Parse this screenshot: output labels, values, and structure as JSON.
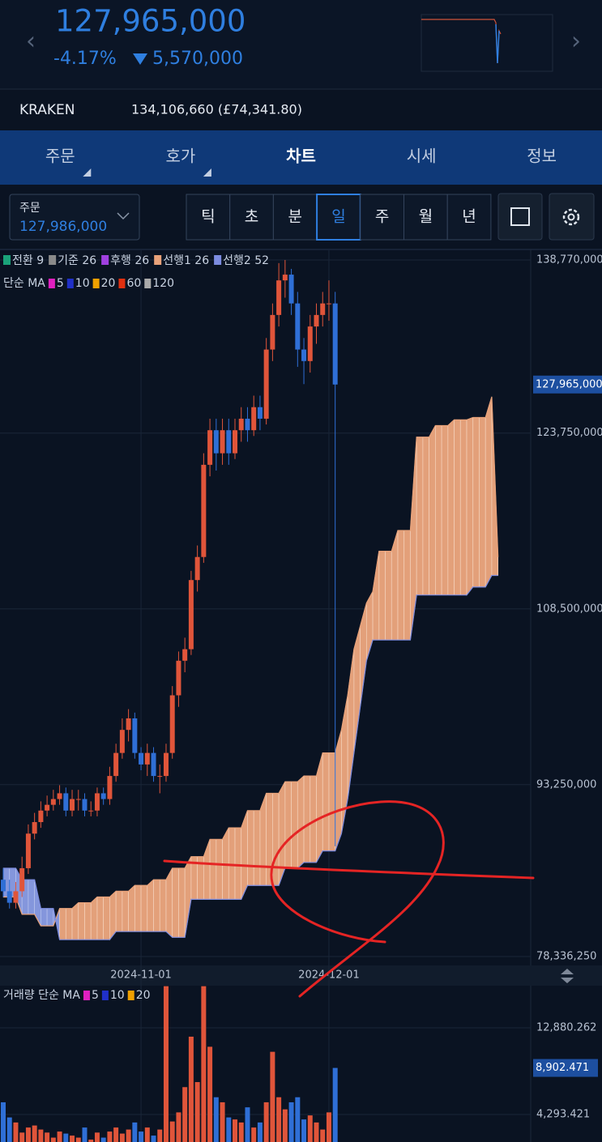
{
  "header": {
    "price": "127,965,000",
    "change_pct": "-4.17%",
    "change": "5,570,000"
  },
  "exchange": {
    "name": "KRAKEN",
    "price": "134,106,660 (£74,341.80)"
  },
  "tabs": [
    "주문",
    "호가",
    "차트",
    "시세",
    "정보"
  ],
  "selected_tab": "차트",
  "order_box": {
    "label": "주문",
    "price": "127,986,000"
  },
  "periods": [
    "틱",
    "초",
    "분",
    "일",
    "주",
    "월",
    "년"
  ],
  "selected_period": "일",
  "chart_data": {
    "type": "candlestick",
    "ichimoku_legend": [
      {
        "name": "전환 9",
        "color": "#1aa37a"
      },
      {
        "name": "기준 26",
        "color": "#8a8a8a"
      },
      {
        "name": "후행 26",
        "color": "#a040e0"
      },
      {
        "name": "선행1 26",
        "color": "#e8a27a"
      },
      {
        "name": "선행2 52",
        "color": "#7c8ce0"
      }
    ],
    "ma_legend": {
      "title": "단순 MA",
      "items": [
        {
          "name": "5",
          "color": "#e020c0"
        },
        {
          "name": "10",
          "color": "#2030c8"
        },
        {
          "name": "20",
          "color": "#f0a000"
        },
        {
          "name": "60",
          "color": "#e03010"
        },
        {
          "name": "120",
          "color": "#aaaaaa"
        }
      ]
    },
    "up_color": "#e0553a",
    "down_color": "#2f6fd6",
    "categories": [
      null,
      null,
      null,
      null,
      null,
      null,
      null,
      null,
      null,
      null,
      null,
      null,
      null,
      null,
      null,
      null,
      null,
      null,
      null,
      null,
      null,
      null,
      "2024-11-01",
      null,
      null,
      null,
      null,
      null,
      null,
      null,
      null,
      null,
      null,
      null,
      null,
      null,
      null,
      null,
      null,
      null,
      null,
      null,
      null,
      null,
      null,
      null,
      null,
      null,
      null,
      null,
      null,
      null,
      "2024-12-01",
      null,
      null,
      null,
      null,
      null,
      null,
      null,
      null,
      null,
      null,
      null,
      null,
      null,
      null,
      null,
      null,
      null,
      null,
      null,
      null,
      null,
      null,
      null,
      null,
      null,
      null,
      null
    ],
    "candles": [
      [
        85000000,
        86000000,
        83500000,
        84000000
      ],
      [
        84000000,
        85000000,
        82500000,
        83000000
      ],
      [
        83000000,
        84800000,
        82500000,
        84000000
      ],
      [
        84000000,
        87000000,
        83500000,
        86000000
      ],
      [
        86000000,
        89800000,
        85500000,
        89000000
      ],
      [
        89000000,
        90800000,
        88500000,
        90000000
      ],
      [
        90000000,
        91800000,
        89500000,
        91000000
      ],
      [
        91000000,
        92300000,
        90500000,
        91500000
      ],
      [
        91500000,
        92800000,
        91000000,
        92000000
      ],
      [
        92000000,
        93200000,
        91500000,
        92500000
      ],
      [
        92500000,
        93000000,
        90500000,
        91000000
      ],
      [
        91000000,
        92800000,
        90500000,
        92000000
      ],
      [
        92000000,
        92800000,
        91000000,
        92000000
      ],
      [
        92000000,
        92500000,
        90500000,
        91000000
      ],
      [
        91000000,
        91800000,
        90500000,
        91000000
      ],
      [
        91000000,
        93000000,
        90500000,
        92500000
      ],
      [
        92500000,
        93000000,
        91500000,
        92000000
      ],
      [
        92000000,
        94800000,
        91500000,
        94000000
      ],
      [
        94000000,
        96800000,
        93500000,
        96000000
      ],
      [
        96000000,
        99000000,
        95500000,
        98000000
      ],
      [
        98000000,
        99800000,
        97000000,
        99000000
      ],
      [
        99000000,
        99500000,
        95500000,
        96000000
      ],
      [
        96000000,
        96500000,
        94500000,
        95000000
      ],
      [
        95000000,
        96800000,
        94000000,
        96000000
      ],
      [
        96000000,
        96500000,
        93500000,
        94000000
      ],
      [
        94000000,
        95000000,
        92500000,
        94000000
      ],
      [
        94000000,
        96800000,
        93500000,
        96000000
      ],
      [
        96000000,
        101800000,
        95500000,
        101000000
      ],
      [
        101000000,
        104800000,
        100000000,
        104000000
      ],
      [
        104000000,
        106000000,
        103000000,
        105000000
      ],
      [
        105000000,
        111800000,
        104500000,
        111000000
      ],
      [
        111000000,
        114000000,
        110000000,
        113000000
      ],
      [
        113000000,
        122000000,
        112500000,
        121000000
      ],
      [
        121000000,
        125000000,
        120000000,
        124000000
      ],
      [
        124000000,
        125000000,
        120500000,
        122000000
      ],
      [
        122000000,
        125000000,
        121000000,
        124000000
      ],
      [
        124000000,
        125000000,
        121000000,
        122000000
      ],
      [
        122000000,
        125000000,
        121500000,
        124000000
      ],
      [
        124000000,
        126000000,
        123000000,
        125000000
      ],
      [
        125000000,
        126000000,
        123000000,
        124000000
      ],
      [
        124000000,
        127000000,
        123500000,
        126000000
      ],
      [
        126000000,
        127000000,
        124000000,
        125000000
      ],
      [
        125000000,
        132000000,
        124500000,
        131000000
      ],
      [
        131000000,
        135000000,
        130000000,
        134000000
      ],
      [
        134000000,
        138500000,
        133000000,
        137000000
      ],
      [
        137000000,
        138770000,
        135500000,
        137500000
      ],
      [
        137500000,
        138000000,
        134000000,
        135000000
      ],
      [
        135000000,
        136000000,
        129500000,
        131000000
      ],
      [
        131000000,
        132000000,
        128000000,
        130000000
      ],
      [
        130000000,
        134000000,
        129000000,
        133000000
      ],
      [
        133000000,
        135000000,
        131500000,
        134000000
      ],
      [
        134000000,
        136000000,
        133000000,
        135000000
      ],
      [
        135000000,
        137000000,
        133500000,
        135000000
      ],
      [
        135000000,
        136000000,
        87900000,
        127965000
      ],
      null,
      null,
      null,
      null,
      null,
      null,
      null,
      null,
      null,
      null,
      null,
      null,
      null,
      null,
      null,
      null,
      null,
      null,
      null,
      null,
      null,
      null,
      null,
      null,
      null,
      null
    ],
    "span_a": [
      83500000,
      83500000,
      83500000,
      82000000,
      82000000,
      82000000,
      81000000,
      81000000,
      81000000,
      82500000,
      82500000,
      82500000,
      83000000,
      83000000,
      83000000,
      83500000,
      83500000,
      83500000,
      84000000,
      84000000,
      84000000,
      84500000,
      84500000,
      84500000,
      85000000,
      85000000,
      85000000,
      86000000,
      86000000,
      86000000,
      87000000,
      87000000,
      87000000,
      88500000,
      88500000,
      88500000,
      89500000,
      89500000,
      89500000,
      91000000,
      91000000,
      91000000,
      92500000,
      92500000,
      92500000,
      93500000,
      93500000,
      93500000,
      94000000,
      94000000,
      94000000,
      96000000,
      96000000,
      96000000,
      98000000,
      101000000,
      105000000,
      107000000,
      109000000,
      110000000,
      113500000,
      113500000,
      113500000,
      115300000,
      115300000,
      115300000,
      123400000,
      123400000,
      123400000,
      124400000,
      124400000,
      124400000,
      124900000,
      124900000,
      124900000,
      125100000,
      125100000,
      125100000,
      126900000,
      113000000
    ],
    "span_b": [
      86000000,
      86000000,
      86000000,
      85000000,
      85000000,
      85000000,
      82500000,
      82500000,
      82500000,
      79800000,
      79800000,
      79800000,
      79800000,
      79800000,
      79800000,
      79800000,
      79800000,
      79800000,
      80500000,
      80500000,
      80500000,
      80500000,
      80500000,
      80500000,
      80500000,
      80500000,
      80500000,
      80000000,
      80000000,
      80000000,
      83300000,
      83300000,
      83300000,
      83300000,
      83300000,
      83300000,
      83300000,
      83300000,
      83300000,
      84500000,
      84500000,
      84500000,
      84500000,
      84500000,
      84500000,
      86000000,
      86000000,
      86000000,
      86500000,
      86500000,
      86500000,
      87500000,
      87500000,
      87500000,
      89000000,
      92000000,
      96000000,
      100000000,
      104000000,
      105800000,
      105800000,
      105800000,
      105800000,
      105800000,
      105800000,
      105800000,
      109700000,
      109700000,
      109700000,
      109700000,
      109700000,
      109700000,
      109700000,
      109700000,
      109700000,
      110400000,
      110400000,
      110400000,
      111400000,
      111400000
    ],
    "ylim": [
      78336250,
      138770000
    ],
    "yticks": [
      {
        "value": 78336250,
        "label": "78,336,250"
      },
      {
        "value": 93250000,
        "label": "93,250,000"
      },
      {
        "value": 108500000,
        "label": "108,500,000"
      },
      {
        "value": 123750000,
        "label": "123,750,000"
      },
      {
        "value": 138770000,
        "label": "138,770,000"
      }
    ],
    "current_price": {
      "value": 127965000,
      "label": "127,965,000"
    },
    "volume": {
      "title": "거래량 단순 MA",
      "ma_items": [
        {
          "name": "5",
          "color": "#e020c0"
        },
        {
          "name": "10",
          "color": "#2030c8"
        },
        {
          "name": "20",
          "color": "#f0a000"
        }
      ],
      "values": [
        5500,
        4000,
        3500,
        2500,
        3000,
        3200,
        2800,
        2500,
        2000,
        2600,
        2400,
        2200,
        2000,
        3000,
        1800,
        2500,
        2000,
        2600,
        3000,
        2400,
        2800,
        3500,
        2600,
        3000,
        2200,
        2800,
        17000,
        3600,
        4500,
        7000,
        12000,
        7500,
        17000,
        11000,
        6000,
        5500,
        4000,
        3800,
        3500,
        5000,
        3000,
        3500,
        5500,
        10500,
        6000,
        4800,
        5500,
        6000,
        3800,
        4200,
        3500,
        2800,
        4500,
        8902.471,
        null,
        null,
        null,
        null,
        null,
        null,
        null,
        null,
        null,
        null,
        null,
        null,
        null,
        null,
        null,
        null,
        null,
        null,
        null,
        null,
        null,
        null,
        null,
        null,
        null,
        null
      ],
      "ylim": [
        0,
        16970
      ],
      "yticks": [
        {
          "value": 4293.421,
          "label": "4,293.421"
        },
        {
          "value": 12880.262,
          "label": "12,880.262"
        }
      ],
      "current": {
        "value": 8902.471,
        "label": "8,902.471"
      }
    }
  }
}
